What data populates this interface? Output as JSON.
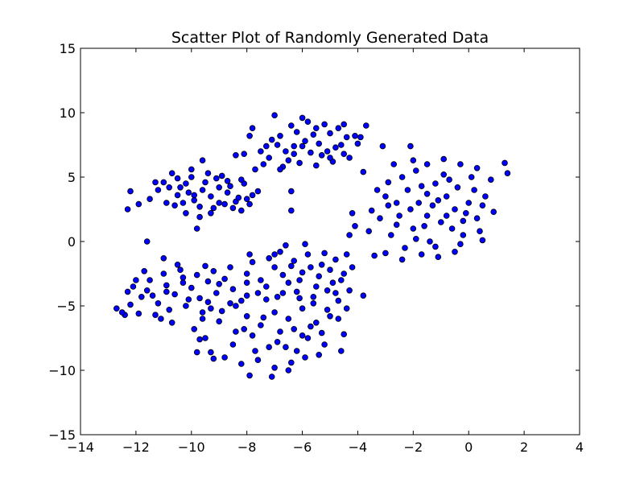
{
  "chart_data": {
    "type": "scatter",
    "title": "Scatter Plot of Randomly Generated Data",
    "xlabel": "",
    "ylabel": "",
    "xlim": [
      -14,
      4
    ],
    "ylim": [
      -15,
      15
    ],
    "x_ticks": [
      -14,
      -12,
      -10,
      -8,
      -6,
      -4,
      -2,
      0,
      2,
      4
    ],
    "x_tick_labels": [
      "−14",
      "−12",
      "−10",
      "−8",
      "−6",
      "−4",
      "−2",
      "0",
      "2",
      "4"
    ],
    "y_ticks": [
      -15,
      -10,
      -5,
      0,
      5,
      10,
      15
    ],
    "y_tick_labels": [
      "−15",
      "−10",
      "−5",
      "0",
      "5",
      "10",
      "15"
    ],
    "grid": false,
    "legend": "none",
    "marker_color": "#0000ff",
    "marker_edge_color": "#000000",
    "series": [
      {
        "points": [
          [
            -10.8,
            4.2
          ],
          [
            -10.5,
            3.6
          ],
          [
            -10.2,
            4.5
          ],
          [
            -9.9,
            3.2
          ],
          [
            -9.6,
            4.0
          ],
          [
            -9.3,
            3.5
          ],
          [
            -9.0,
            4.2
          ],
          [
            -8.7,
            3.8
          ],
          [
            -8.4,
            3.1
          ],
          [
            -8.1,
            4.5
          ],
          [
            -7.8,
            3.6
          ],
          [
            -10.6,
            2.8
          ],
          [
            -10.0,
            5.0
          ],
          [
            -9.4,
            5.3
          ],
          [
            -9.2,
            2.6
          ],
          [
            -8.8,
            2.9
          ],
          [
            -8.2,
            4.8
          ],
          [
            -7.9,
            2.9
          ],
          [
            -10.9,
            3.0
          ],
          [
            -10.3,
            3.0
          ],
          [
            -9.7,
            2.7
          ],
          [
            -9.5,
            4.6
          ],
          [
            -9.8,
            1.0
          ],
          [
            -11.2,
            4.0
          ],
          [
            -11.5,
            3.3
          ],
          [
            -9.1,
            4.9
          ],
          [
            -10.1,
            3.8
          ],
          [
            -9.0,
            3.0
          ],
          [
            -8.6,
            4.3
          ],
          [
            -8.3,
            3.4
          ],
          [
            -11.0,
            4.6
          ],
          [
            -10.4,
            4.2
          ],
          [
            -7.6,
            3.9
          ],
          [
            -9.3,
            2.2
          ],
          [
            -8.9,
            5.1
          ],
          [
            -12.2,
            3.9
          ],
          [
            -12.3,
            2.5
          ],
          [
            -11.9,
            2.9
          ],
          [
            -10.7,
            5.3
          ],
          [
            -9.6,
            6.3
          ],
          [
            -9.7,
            1.9
          ],
          [
            -10.2,
            2.2
          ],
          [
            -8.5,
            2.6
          ],
          [
            -8.0,
            3.3
          ],
          [
            -8.7,
            4.7
          ],
          [
            -9.9,
            3.6
          ],
          [
            -10.5,
            4.9
          ],
          [
            -8.2,
            2.4
          ],
          [
            -10.0,
            5.6
          ],
          [
            -11.3,
            4.6
          ]
        ]
      },
      {
        "points": [
          [
            -7.5,
            7.0
          ],
          [
            -7.2,
            6.5
          ],
          [
            -6.9,
            7.5
          ],
          [
            -6.6,
            7.0
          ],
          [
            -6.3,
            6.8
          ],
          [
            -6.0,
            7.4
          ],
          [
            -5.7,
            6.9
          ],
          [
            -5.4,
            7.6
          ],
          [
            -5.1,
            7.0
          ],
          [
            -4.8,
            7.3
          ],
          [
            -4.5,
            6.8
          ],
          [
            -6.8,
            8.2
          ],
          [
            -6.2,
            8.5
          ],
          [
            -5.6,
            8.3
          ],
          [
            -5.0,
            8.4
          ],
          [
            -4.4,
            8.1
          ],
          [
            -7.4,
            6.0
          ],
          [
            -6.7,
            5.8
          ],
          [
            -6.1,
            6.1
          ],
          [
            -5.5,
            5.9
          ],
          [
            -4.9,
            6.2
          ],
          [
            -4.3,
            6.5
          ],
          [
            -7.1,
            7.9
          ],
          [
            -6.4,
            9.0
          ],
          [
            -5.8,
            9.3
          ],
          [
            -5.2,
            9.1
          ],
          [
            -4.7,
            8.8
          ],
          [
            -7.8,
            8.8
          ],
          [
            -8.1,
            6.8
          ],
          [
            -7.7,
            5.6
          ],
          [
            -6.5,
            6.3
          ],
          [
            -5.9,
            7.8
          ],
          [
            -5.3,
            6.7
          ],
          [
            -4.6,
            7.5
          ],
          [
            -4.1,
            8.2
          ],
          [
            -7.0,
            9.8
          ],
          [
            -8.4,
            6.7
          ],
          [
            -7.3,
            7.4
          ],
          [
            -6.0,
            9.6
          ],
          [
            -5.5,
            8.8
          ],
          [
            -4.0,
            7.6
          ],
          [
            -3.9,
            8.1
          ],
          [
            -6.8,
            5.6
          ],
          [
            -6.4,
            3.9
          ],
          [
            -6.4,
            2.4
          ],
          [
            -7.9,
            8.2
          ],
          [
            -5.0,
            6.5
          ],
          [
            -4.5,
            9.1
          ],
          [
            -3.7,
            9.0
          ],
          [
            -6.3,
            7.4
          ]
        ]
      },
      {
        "points": [
          [
            -3.0,
            3.5
          ],
          [
            -2.5,
            2.0
          ],
          [
            -2.2,
            4.0
          ],
          [
            -2.0,
            1.0
          ],
          [
            -1.8,
            3.0
          ],
          [
            -1.5,
            2.0
          ],
          [
            -1.2,
            4.5
          ],
          [
            -1.0,
            1.5
          ],
          [
            -0.8,
            3.5
          ],
          [
            -0.5,
            2.5
          ],
          [
            -0.2,
            0.5
          ],
          [
            0.0,
            3.0
          ],
          [
            0.3,
            1.8
          ],
          [
            -2.8,
            0.5
          ],
          [
            -2.4,
            5.0
          ],
          [
            -1.9,
            5.5
          ],
          [
            -1.4,
            0.0
          ],
          [
            -0.9,
            5.2
          ],
          [
            -0.4,
            4.2
          ],
          [
            0.2,
            4.0
          ],
          [
            0.5,
            2.8
          ],
          [
            -3.2,
            1.8
          ],
          [
            -2.6,
            3.0
          ],
          [
            -2.1,
            2.5
          ],
          [
            -1.6,
            1.2
          ],
          [
            -1.1,
            3.2
          ],
          [
            -0.6,
            1.0
          ],
          [
            -0.1,
            2.2
          ],
          [
            0.4,
            0.8
          ],
          [
            -2.9,
            4.6
          ],
          [
            -2.3,
            -0.5
          ],
          [
            -1.7,
            4.3
          ],
          [
            -1.3,
            2.8
          ],
          [
            -0.7,
            4.8
          ],
          [
            -0.3,
            -0.2
          ],
          [
            0.1,
            5.0
          ],
          [
            0.6,
            3.5
          ],
          [
            -3.5,
            2.4
          ],
          [
            -3.3,
            4.0
          ],
          [
            -2.7,
            6.0
          ],
          [
            -2.0,
            6.3
          ],
          [
            -1.5,
            6.0
          ],
          [
            -0.9,
            6.4
          ],
          [
            -0.3,
            6.0
          ],
          [
            0.3,
            5.7
          ],
          [
            0.8,
            4.8
          ],
          [
            -3.6,
            0.8
          ],
          [
            -3.0,
            -0.9
          ],
          [
            -2.4,
            -1.4
          ],
          [
            -1.7,
            -1.0
          ],
          [
            -1.1,
            -1.2
          ],
          [
            -0.5,
            -0.8
          ],
          [
            0.5,
            0.1
          ],
          [
            0.9,
            2.3
          ],
          [
            1.3,
            6.1
          ],
          [
            1.4,
            5.3
          ],
          [
            -2.1,
            7.4
          ],
          [
            -1.5,
            3.7
          ],
          [
            -2.6,
            1.3
          ],
          [
            -0.8,
            2.0
          ],
          [
            -1.9,
            0.2
          ],
          [
            -2.9,
            2.8
          ],
          [
            -0.2,
            1.6
          ],
          [
            -1.2,
            -0.4
          ],
          [
            -3.8,
            5.4
          ],
          [
            -3.1,
            7.4
          ],
          [
            -4.3,
            0.5
          ],
          [
            -4.1,
            1.2
          ],
          [
            -4.2,
            2.2
          ],
          [
            -3.4,
            -1.1
          ]
        ]
      },
      {
        "points": [
          [
            -12.7,
            -5.2
          ],
          [
            -12.4,
            -5.7
          ],
          [
            -12.1,
            -3.5
          ],
          [
            -11.8,
            -4.3
          ],
          [
            -11.5,
            -3.0
          ],
          [
            -11.2,
            -4.8
          ],
          [
            -10.9,
            -3.4
          ],
          [
            -10.6,
            -4.1
          ],
          [
            -10.3,
            -2.8
          ],
          [
            -10.0,
            -3.6
          ],
          [
            -9.7,
            -4.4
          ],
          [
            -9.4,
            -3.1
          ],
          [
            -9.1,
            -4.0
          ],
          [
            -8.8,
            -2.9
          ],
          [
            -8.5,
            -3.7
          ],
          [
            -8.2,
            -4.6
          ],
          [
            -10.8,
            -5.3
          ],
          [
            -10.2,
            -5.0
          ],
          [
            -9.6,
            -5.5
          ],
          [
            -11.0,
            -2.5
          ],
          [
            -10.4,
            -2.2
          ],
          [
            -9.8,
            -2.6
          ],
          [
            -9.2,
            -2.3
          ],
          [
            -12.2,
            -4.9
          ],
          [
            -11.6,
            -3.8
          ],
          [
            -11.3,
            -5.7
          ],
          [
            -10.7,
            -6.3
          ],
          [
            -9.9,
            -6.8
          ],
          [
            -9.3,
            -5.2
          ],
          [
            -12.0,
            -3.0
          ],
          [
            -11.7,
            -2.3
          ],
          [
            -10.5,
            -1.8
          ],
          [
            -9.5,
            -1.9
          ],
          [
            -8.9,
            -5.4
          ],
          [
            -8.6,
            -2.0
          ],
          [
            -12.5,
            -5.5
          ],
          [
            -11.9,
            -5.6
          ],
          [
            -11.1,
            -6.0
          ],
          [
            -10.1,
            -4.5
          ],
          [
            -9.0,
            -3.3
          ],
          [
            -8.4,
            -5.0
          ],
          [
            -8.0,
            -3.2
          ],
          [
            -9.7,
            -7.6
          ],
          [
            -11.4,
            -4.2
          ],
          [
            -10.9,
            -3.9
          ],
          [
            -10.3,
            -3.2
          ],
          [
            -9.4,
            -4.7
          ],
          [
            -12.3,
            -3.9
          ],
          [
            -11.6,
            -0.0
          ],
          [
            -11.0,
            -1.3
          ]
        ]
      },
      {
        "points": [
          [
            -9.5,
            -7.5
          ],
          [
            -9.0,
            -6.2
          ],
          [
            -8.5,
            -8.0
          ],
          [
            -8.0,
            -5.8
          ],
          [
            -7.8,
            -7.3
          ],
          [
            -7.5,
            -6.5
          ],
          [
            -7.2,
            -8.2
          ],
          [
            -7.0,
            -5.5
          ],
          [
            -6.8,
            -7.0
          ],
          [
            -6.5,
            -6.0
          ],
          [
            -6.2,
            -8.5
          ],
          [
            -6.0,
            -5.2
          ],
          [
            -5.8,
            -7.5
          ],
          [
            -5.5,
            -6.3
          ],
          [
            -5.2,
            -8.0
          ],
          [
            -5.0,
            -5.8
          ],
          [
            -8.8,
            -9.0
          ],
          [
            -8.2,
            -9.5
          ],
          [
            -7.6,
            -9.2
          ],
          [
            -7.0,
            -9.8
          ],
          [
            -6.4,
            -9.4
          ],
          [
            -5.9,
            -9.0
          ],
          [
            -5.4,
            -8.8
          ],
          [
            -9.3,
            -8.6
          ],
          [
            -8.6,
            -4.8
          ],
          [
            -8.0,
            -4.2
          ],
          [
            -7.3,
            -4.5
          ],
          [
            -6.7,
            -4.0
          ],
          [
            -6.1,
            -4.4
          ],
          [
            -5.6,
            -4.8
          ],
          [
            -5.1,
            -5.3
          ],
          [
            -4.7,
            -6.0
          ],
          [
            -4.5,
            -7.2
          ],
          [
            -4.6,
            -8.5
          ],
          [
            -7.9,
            -10.4
          ],
          [
            -7.1,
            -10.5
          ],
          [
            -6.5,
            -10.0
          ],
          [
            -9.8,
            -8.6
          ],
          [
            -9.2,
            -9.1
          ],
          [
            -8.4,
            -7.0
          ],
          [
            -7.7,
            -8.5
          ],
          [
            -6.9,
            -7.8
          ],
          [
            -6.3,
            -6.8
          ],
          [
            -5.7,
            -6.6
          ],
          [
            -7.4,
            -5.9
          ],
          [
            -6.6,
            -8.2
          ],
          [
            -8.1,
            -6.8
          ],
          [
            -5.3,
            -7.1
          ],
          [
            -9.6,
            -6.0
          ],
          [
            -6.0,
            -7.3
          ]
        ]
      },
      {
        "points": [
          [
            -8.0,
            -2.5
          ],
          [
            -7.5,
            -3.0
          ],
          [
            -7.0,
            -2.0
          ],
          [
            -6.5,
            -3.2
          ],
          [
            -6.0,
            -2.4
          ],
          [
            -5.5,
            -3.5
          ],
          [
            -5.0,
            -2.2
          ],
          [
            -4.6,
            -3.0
          ],
          [
            -4.3,
            -3.8
          ],
          [
            -7.8,
            -1.6
          ],
          [
            -7.2,
            -1.3
          ],
          [
            -6.8,
            -0.8
          ],
          [
            -6.3,
            -1.5
          ],
          [
            -5.8,
            -1.0
          ],
          [
            -5.3,
            -1.8
          ],
          [
            -4.8,
            -1.4
          ],
          [
            -7.6,
            -4.0
          ],
          [
            -6.9,
            -4.3
          ],
          [
            -6.2,
            -3.9
          ],
          [
            -5.6,
            -4.3
          ],
          [
            -5.1,
            -3.8
          ],
          [
            -4.5,
            -2.5
          ],
          [
            -4.2,
            -2.0
          ],
          [
            -4.4,
            -1.0
          ],
          [
            -6.6,
            -0.3
          ],
          [
            -5.9,
            -0.2
          ],
          [
            -7.0,
            -1.0
          ],
          [
            -5.2,
            -0.9
          ],
          [
            -4.7,
            -4.6
          ],
          [
            -3.8,
            -4.2
          ],
          [
            -6.7,
            -2.6
          ],
          [
            -6.1,
            -3.0
          ],
          [
            -5.4,
            -2.7
          ],
          [
            -7.3,
            -3.5
          ],
          [
            -4.9,
            -3.2
          ],
          [
            -5.7,
            -2.0
          ],
          [
            -6.4,
            -1.9
          ],
          [
            -7.9,
            -1.0
          ],
          [
            -4.4,
            -5.2
          ],
          [
            -4.8,
            -4.0
          ]
        ]
      }
    ]
  }
}
